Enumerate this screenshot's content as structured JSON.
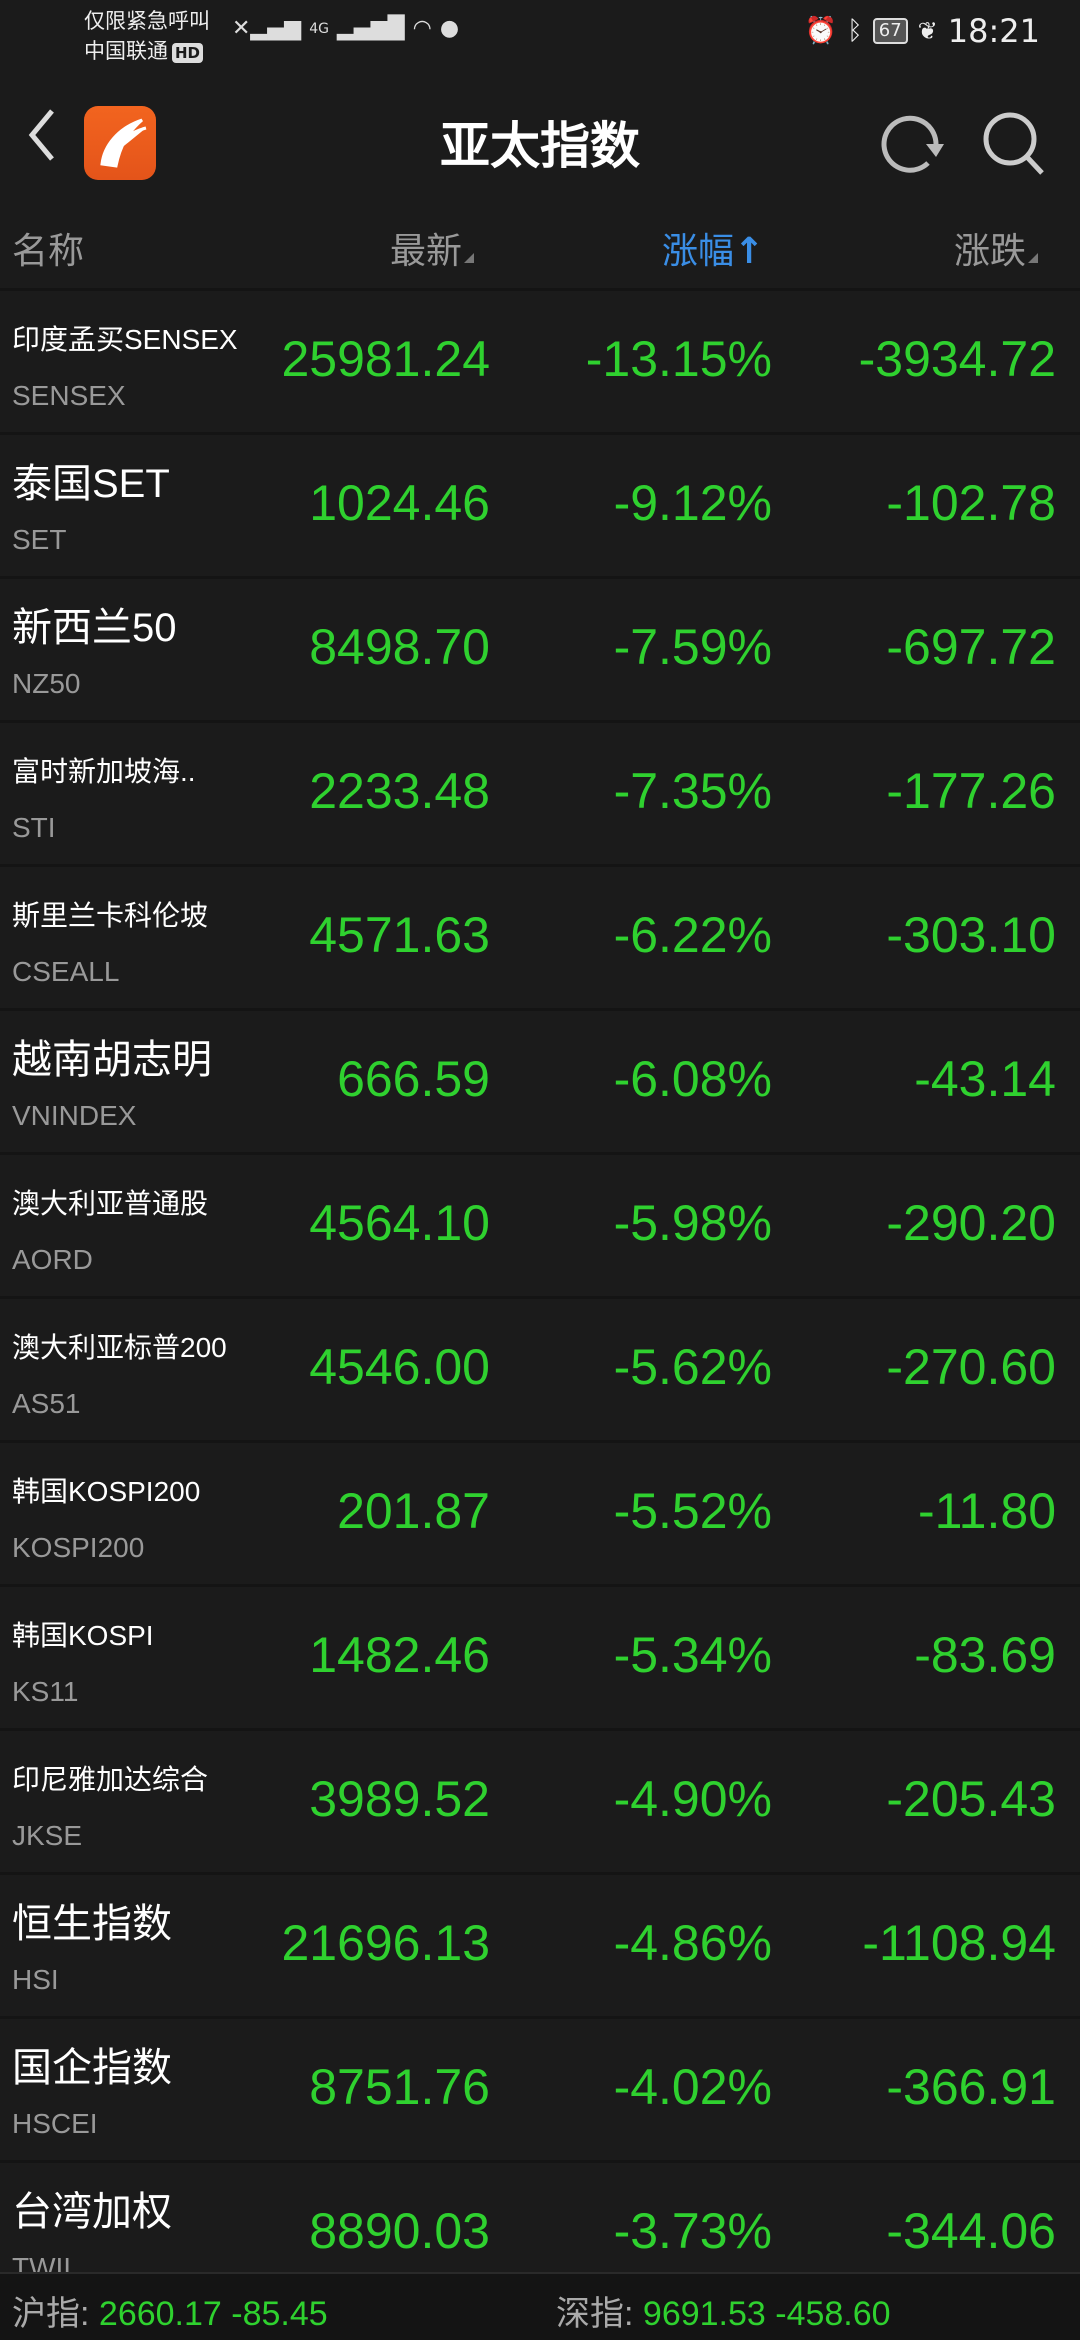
{
  "status_bar": {
    "line1": "仅限紧急呼叫",
    "line2": "中国联通",
    "hd": "HD",
    "network": "4G",
    "battery": "67",
    "time": "18:21"
  },
  "header": {
    "title": "亚太指数",
    "icons": [
      "back-icon",
      "app-logo",
      "refresh-icon",
      "search-icon"
    ]
  },
  "columns": {
    "name": "名称",
    "latest": "最新",
    "change_pct": "涨幅",
    "change_pct_arrow": "↑",
    "change": "涨跌"
  },
  "colors": {
    "down": "#2fd12f",
    "accent": "#3a8ee6",
    "logo": "#f2641f"
  },
  "rows": [
    {
      "name": "印度孟买SENSEX",
      "code": "SENSEX",
      "latest": "25981.24",
      "pct": "-13.15%",
      "chg": "-3934.72"
    },
    {
      "name": "泰国SET",
      "code": "SET",
      "latest": "1024.46",
      "pct": "-9.12%",
      "chg": "-102.78"
    },
    {
      "name": "新西兰50",
      "code": "NZ50",
      "latest": "8498.70",
      "pct": "-7.59%",
      "chg": "-697.72"
    },
    {
      "name": "富时新加坡海..",
      "code": "STI",
      "latest": "2233.48",
      "pct": "-7.35%",
      "chg": "-177.26"
    },
    {
      "name": "斯里兰卡科伦坡",
      "code": "CSEALL",
      "latest": "4571.63",
      "pct": "-6.22%",
      "chg": "-303.10"
    },
    {
      "name": "越南胡志明",
      "code": "VNINDEX",
      "latest": "666.59",
      "pct": "-6.08%",
      "chg": "-43.14"
    },
    {
      "name": "澳大利亚普通股",
      "code": "AORD",
      "latest": "4564.10",
      "pct": "-5.98%",
      "chg": "-290.20"
    },
    {
      "name": "澳大利亚标普200",
      "code": "AS51",
      "latest": "4546.00",
      "pct": "-5.62%",
      "chg": "-270.60"
    },
    {
      "name": "韩国KOSPI200",
      "code": "KOSPI200",
      "latest": "201.87",
      "pct": "-5.52%",
      "chg": "-11.80"
    },
    {
      "name": "韩国KOSPI",
      "code": "KS11",
      "latest": "1482.46",
      "pct": "-5.34%",
      "chg": "-83.69"
    },
    {
      "name": "印尼雅加达综合",
      "code": "JKSE",
      "latest": "3989.52",
      "pct": "-4.90%",
      "chg": "-205.43"
    },
    {
      "name": "恒生指数",
      "code": "HSI",
      "latest": "21696.13",
      "pct": "-4.86%",
      "chg": "-1108.94"
    },
    {
      "name": "国企指数",
      "code": "HSCEI",
      "latest": "8751.76",
      "pct": "-4.02%",
      "chg": "-366.91"
    },
    {
      "name": "台湾加权",
      "code": "TWII",
      "latest": "8890.03",
      "pct": "-3.73%",
      "chg": "-344.06"
    }
  ],
  "footer": {
    "sh_label": "沪指:",
    "sh_value": "2660.17 -85.45",
    "sz_label": "深指:",
    "sz_value": "9691.53 -458.60"
  }
}
